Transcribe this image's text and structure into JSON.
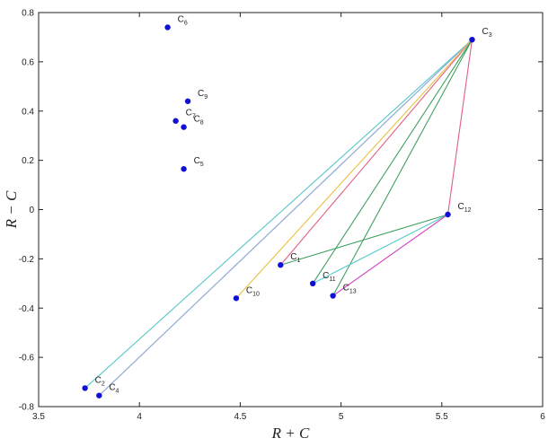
{
  "chart_data": {
    "type": "scatter",
    "title": "",
    "xlabel": "R + C",
    "ylabel": "R − C",
    "xlim": [
      3.5,
      6
    ],
    "ylim": [
      -0.8,
      0.8
    ],
    "xticks": [
      "3.5",
      "4",
      "4.5",
      "5",
      "5.5",
      "6"
    ],
    "yticks": [
      "-0.8",
      "-0.6",
      "-0.4",
      "-0.2",
      "0",
      "0.2",
      "0.4",
      "0.6",
      "0.8"
    ],
    "grid": false,
    "points": [
      {
        "label": "C",
        "sub": "1",
        "x": 4.7,
        "y": -0.225
      },
      {
        "label": "C",
        "sub": "2",
        "x": 3.73,
        "y": -0.725
      },
      {
        "label": "C",
        "sub": "3",
        "x": 5.65,
        "y": 0.69
      },
      {
        "label": "C",
        "sub": "4",
        "x": 3.8,
        "y": -0.755
      },
      {
        "label": "C",
        "sub": "5",
        "x": 4.22,
        "y": 0.165
      },
      {
        "label": "C",
        "sub": "6",
        "x": 4.14,
        "y": 0.74
      },
      {
        "label": "C",
        "sub": "7",
        "x": 4.18,
        "y": 0.36
      },
      {
        "label": "C",
        "sub": "8",
        "x": 4.22,
        "y": 0.335
      },
      {
        "label": "C",
        "sub": "9",
        "x": 4.24,
        "y": 0.44
      },
      {
        "label": "C",
        "sub": "10",
        "x": 4.48,
        "y": -0.36
      },
      {
        "label": "C",
        "sub": "11",
        "x": 4.86,
        "y": -0.3
      },
      {
        "label": "C",
        "sub": "12",
        "x": 5.53,
        "y": -0.02
      },
      {
        "label": "C",
        "sub": "13",
        "x": 4.96,
        "y": -0.35
      }
    ],
    "arrows": [
      {
        "from": 2,
        "to": 0,
        "color": "#e06080"
      },
      {
        "from": 2,
        "to": 1,
        "color": "#55c8c8"
      },
      {
        "from": 2,
        "to": 3,
        "color": "#e06080"
      },
      {
        "from": 2,
        "to": 3,
        "color": "#8ab8e0"
      },
      {
        "from": 2,
        "to": 9,
        "color": "#e8c040"
      },
      {
        "from": 2,
        "to": 10,
        "color": "#40a060"
      },
      {
        "from": 2,
        "to": 12,
        "color": "#40a060"
      },
      {
        "from": 2,
        "to": 11,
        "color": "#e06080"
      },
      {
        "from": 11,
        "to": 0,
        "color": "#40a060"
      },
      {
        "from": 11,
        "to": 10,
        "color": "#55c8c8"
      },
      {
        "from": 11,
        "to": 12,
        "color": "#d040c0"
      }
    ],
    "colors": {
      "point": "#1010d0",
      "axis": "#222222"
    }
  }
}
